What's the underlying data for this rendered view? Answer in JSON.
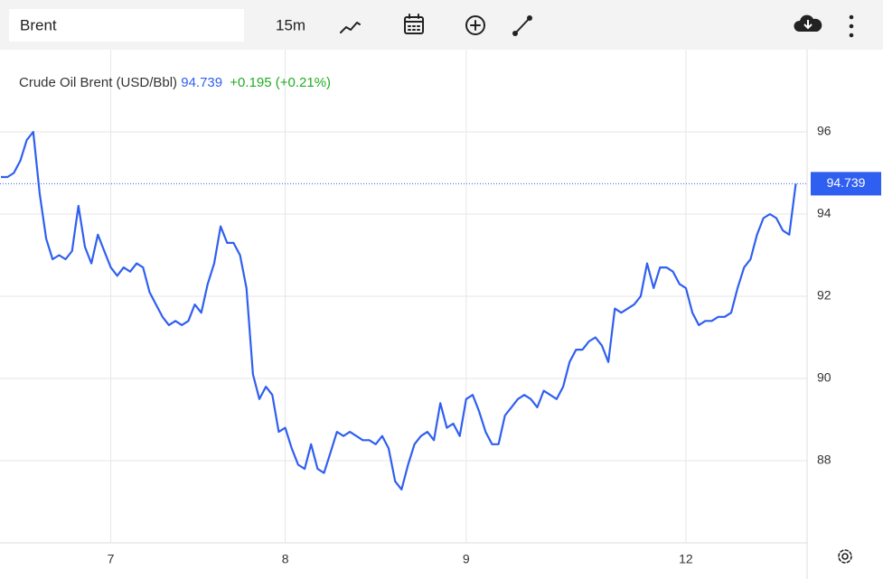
{
  "toolbar": {
    "search": "Brent",
    "interval": "15m"
  },
  "chart_data": {
    "type": "line",
    "title": "Crude Oil Brent (USD/Bbl)",
    "change_label": "+0.195 (+0.21%)",
    "categories": [
      null,
      null,
      null,
      null,
      null,
      null,
      null,
      null,
      null,
      null,
      null,
      null,
      null,
      null,
      null,
      null,
      null,
      "7",
      null,
      null,
      null,
      null,
      null,
      null,
      null,
      null,
      null,
      null,
      null,
      null,
      null,
      null,
      null,
      null,
      null,
      null,
      null,
      null,
      null,
      null,
      null,
      null,
      null,
      null,
      "8",
      null,
      null,
      null,
      null,
      null,
      null,
      null,
      null,
      null,
      null,
      null,
      null,
      null,
      null,
      null,
      null,
      null,
      null,
      null,
      null,
      null,
      null,
      null,
      null,
      null,
      null,
      null,
      "9",
      null,
      null,
      null,
      null,
      null,
      null,
      null,
      null,
      null,
      null,
      null,
      null,
      null,
      null,
      null,
      null,
      null,
      null,
      null,
      null,
      null,
      null,
      null,
      null,
      null,
      null,
      null,
      null,
      null,
      null,
      null,
      null,
      null,
      "12",
      null,
      null,
      null,
      null,
      null,
      null,
      null,
      null,
      null,
      null,
      null,
      null,
      null,
      null,
      null,
      null,
      null
    ],
    "series": [
      {
        "color": "#2f5ff0",
        "values": [
          94.9,
          94.9,
          95.0,
          95.3,
          95.8,
          96.0,
          94.5,
          93.4,
          92.9,
          93.0,
          92.9,
          93.1,
          94.2,
          93.2,
          92.8,
          93.5,
          93.1,
          92.7,
          92.5,
          92.7,
          92.6,
          92.8,
          92.7,
          92.1,
          91.8,
          91.5,
          91.3,
          91.4,
          91.3,
          91.4,
          91.8,
          91.6,
          92.3,
          92.8,
          93.7,
          93.3,
          93.3,
          93.0,
          92.2,
          90.1,
          89.5,
          89.8,
          89.6,
          88.7,
          88.8,
          88.3,
          87.9,
          87.8,
          88.4,
          87.8,
          87.7,
          88.2,
          88.7,
          88.6,
          88.7,
          88.6,
          88.5,
          88.5,
          88.4,
          88.6,
          88.3,
          87.5,
          87.3,
          87.9,
          88.4,
          88.6,
          88.7,
          88.5,
          89.4,
          88.8,
          88.9,
          88.6,
          89.5,
          89.6,
          89.2,
          88.7,
          88.4,
          88.4,
          89.1,
          89.3,
          89.5,
          89.6,
          89.5,
          89.3,
          89.7,
          89.6,
          89.5,
          89.8,
          90.4,
          90.7,
          90.7,
          90.9,
          91.0,
          90.8,
          90.4,
          91.7,
          91.6,
          91.7,
          91.8,
          92.0,
          92.8,
          92.2,
          92.7,
          92.7,
          92.6,
          92.3,
          92.2,
          91.6,
          91.3,
          91.4,
          91.4,
          91.5,
          91.5,
          91.6,
          92.2,
          92.7,
          92.9,
          93.5,
          93.9,
          94.0,
          93.9,
          93.6,
          93.5,
          94.739
        ]
      }
    ],
    "ylim": [
      86,
      98
    ],
    "yticks": [
      88,
      90,
      92,
      94,
      96
    ],
    "grid": true
  }
}
